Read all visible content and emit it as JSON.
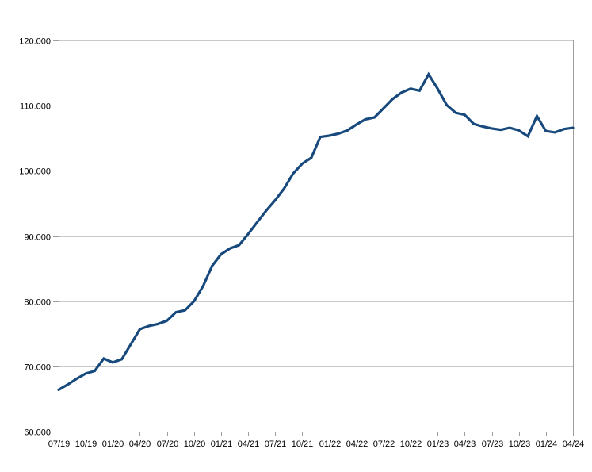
{
  "chart_data": {
    "type": "line",
    "title": "",
    "xlabel": "",
    "ylabel": "",
    "grid": true,
    "legend": "none",
    "background_color": "#ffffff",
    "line_color": "#17497d",
    "gridline_color": "#c9c9c9",
    "axis_color": "#9e9e9e",
    "ylim": [
      60000,
      120000
    ],
    "y_tick_step": 10000,
    "y_tick_labels": [
      "120.000",
      "110.000",
      "100.000",
      "90.000",
      "80.000",
      "70.000",
      "60.000"
    ],
    "x_tick_every": 3,
    "x_tick_labels": [
      "07/19",
      "10/19",
      "01/20",
      "04/20",
      "07/20",
      "10/20",
      "01/21",
      "04/21",
      "07/21",
      "10/21",
      "01/22",
      "04/22",
      "07/22",
      "10/22",
      "01/23",
      "04/23",
      "07/23",
      "10/23",
      "01/24",
      "04/24"
    ],
    "x": [
      "07/19",
      "08/19",
      "09/19",
      "10/19",
      "11/19",
      "12/19",
      "01/20",
      "02/20",
      "03/20",
      "04/20",
      "05/20",
      "06/20",
      "07/20",
      "08/20",
      "09/20",
      "10/20",
      "11/20",
      "12/20",
      "01/21",
      "02/21",
      "03/21",
      "04/21",
      "05/21",
      "06/21",
      "07/21",
      "08/21",
      "09/21",
      "10/21",
      "11/21",
      "12/21",
      "01/22",
      "02/22",
      "03/22",
      "04/22",
      "05/22",
      "06/22",
      "07/22",
      "08/22",
      "09/22",
      "10/22",
      "11/22",
      "12/22",
      "01/23",
      "02/23",
      "03/23",
      "04/23",
      "05/23",
      "06/23",
      "07/23",
      "08/23",
      "09/23",
      "10/23",
      "11/23",
      "12/23",
      "01/24",
      "02/24",
      "03/24",
      "04/24"
    ],
    "values": [
      66400,
      67200,
      68100,
      68900,
      69300,
      71200,
      70600,
      71100,
      73400,
      75700,
      76200,
      76500,
      77000,
      78300,
      78600,
      80000,
      82300,
      85400,
      87200,
      88100,
      88600,
      90300,
      92100,
      93900,
      95500,
      97300,
      99600,
      101100,
      102000,
      105200,
      105400,
      105700,
      106200,
      107100,
      107900,
      108200,
      109600,
      111000,
      112000,
      112600,
      112300,
      114800,
      112600,
      110100,
      108900,
      108600,
      107200,
      106800,
      106500,
      106300,
      106600,
      106200,
      105300,
      108400,
      106100,
      105900,
      106400,
      106600
    ]
  }
}
